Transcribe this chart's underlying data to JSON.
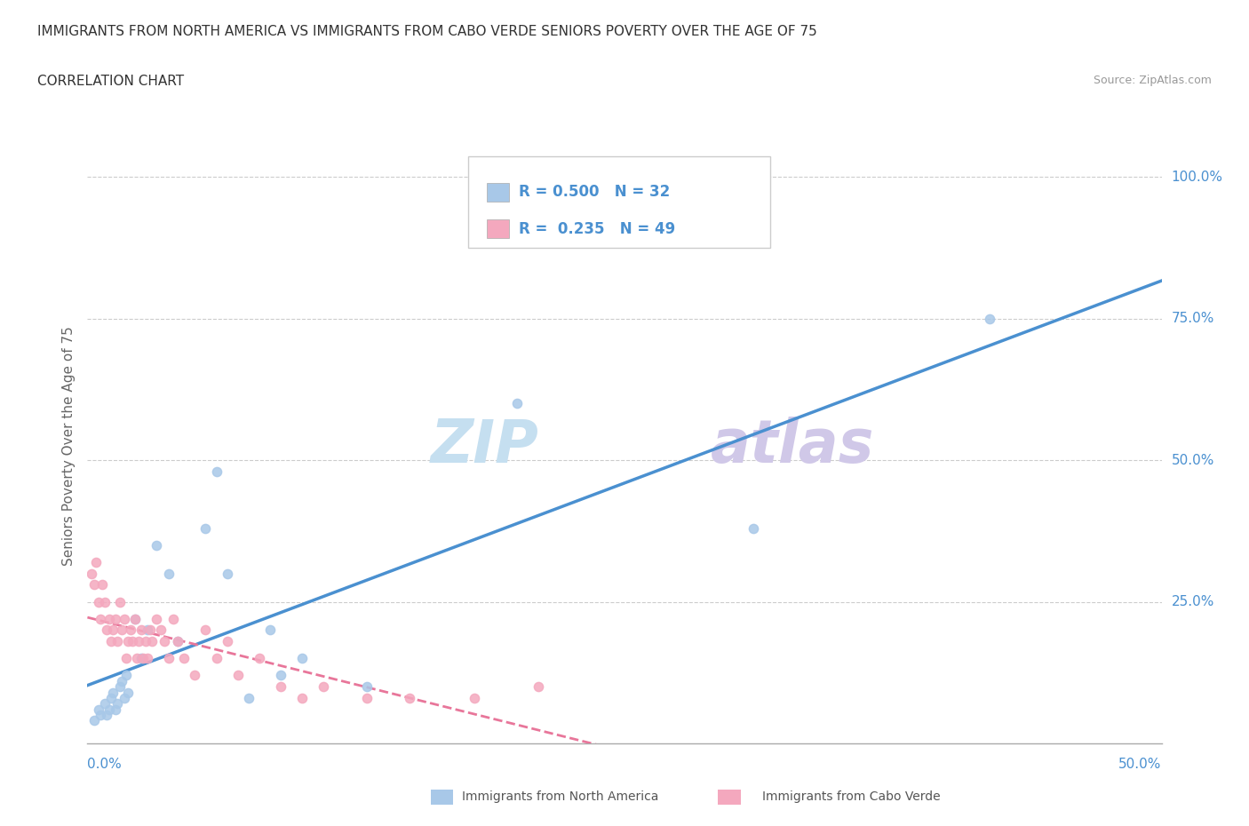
{
  "title": "IMMIGRANTS FROM NORTH AMERICA VS IMMIGRANTS FROM CABO VERDE SENIORS POVERTY OVER THE AGE OF 75",
  "subtitle": "CORRELATION CHART",
  "source": "Source: ZipAtlas.com",
  "xlabel_bottom_left": "0.0%",
  "xlabel_bottom_right": "50.0%",
  "ylabel": "Seniors Poverty Over the Age of 75",
  "ytick_labels": [
    "100.0%",
    "75.0%",
    "50.0%",
    "25.0%"
  ],
  "ytick_positions": [
    1.0,
    0.75,
    0.5,
    0.25
  ],
  "xlim": [
    0.0,
    0.5
  ],
  "ylim": [
    0.0,
    1.05
  ],
  "legend_r1": "0.500",
  "legend_n1": "32",
  "legend_r2": "0.235",
  "legend_n2": "49",
  "color_blue": "#a8c8e8",
  "color_pink": "#f4a8be",
  "trendline_blue_color": "#4a90d0",
  "trendline_pink_color": "#e8769a",
  "label_color": "#4a90d0",
  "north_america_x": [
    0.003,
    0.005,
    0.006,
    0.008,
    0.009,
    0.01,
    0.011,
    0.012,
    0.013,
    0.014,
    0.015,
    0.016,
    0.017,
    0.018,
    0.019,
    0.022,
    0.025,
    0.028,
    0.032,
    0.038,
    0.042,
    0.055,
    0.06,
    0.065,
    0.075,
    0.085,
    0.09,
    0.1,
    0.13,
    0.2,
    0.31,
    0.42
  ],
  "north_america_y": [
    0.04,
    0.06,
    0.05,
    0.07,
    0.05,
    0.06,
    0.08,
    0.09,
    0.06,
    0.07,
    0.1,
    0.11,
    0.08,
    0.12,
    0.09,
    0.22,
    0.15,
    0.2,
    0.35,
    0.3,
    0.18,
    0.38,
    0.48,
    0.3,
    0.08,
    0.2,
    0.12,
    0.15,
    0.1,
    0.6,
    0.38,
    0.75
  ],
  "cabo_verde_x": [
    0.002,
    0.003,
    0.004,
    0.005,
    0.006,
    0.007,
    0.008,
    0.009,
    0.01,
    0.011,
    0.012,
    0.013,
    0.014,
    0.015,
    0.016,
    0.017,
    0.018,
    0.019,
    0.02,
    0.021,
    0.022,
    0.023,
    0.024,
    0.025,
    0.026,
    0.027,
    0.028,
    0.029,
    0.03,
    0.032,
    0.034,
    0.036,
    0.038,
    0.04,
    0.042,
    0.045,
    0.05,
    0.055,
    0.06,
    0.065,
    0.07,
    0.08,
    0.09,
    0.1,
    0.11,
    0.13,
    0.15,
    0.18,
    0.21
  ],
  "cabo_verde_y": [
    0.3,
    0.28,
    0.32,
    0.25,
    0.22,
    0.28,
    0.25,
    0.2,
    0.22,
    0.18,
    0.2,
    0.22,
    0.18,
    0.25,
    0.2,
    0.22,
    0.15,
    0.18,
    0.2,
    0.18,
    0.22,
    0.15,
    0.18,
    0.2,
    0.15,
    0.18,
    0.15,
    0.2,
    0.18,
    0.22,
    0.2,
    0.18,
    0.15,
    0.22,
    0.18,
    0.15,
    0.12,
    0.2,
    0.15,
    0.18,
    0.12,
    0.15,
    0.1,
    0.08,
    0.1,
    0.08,
    0.08,
    0.08,
    0.1
  ]
}
